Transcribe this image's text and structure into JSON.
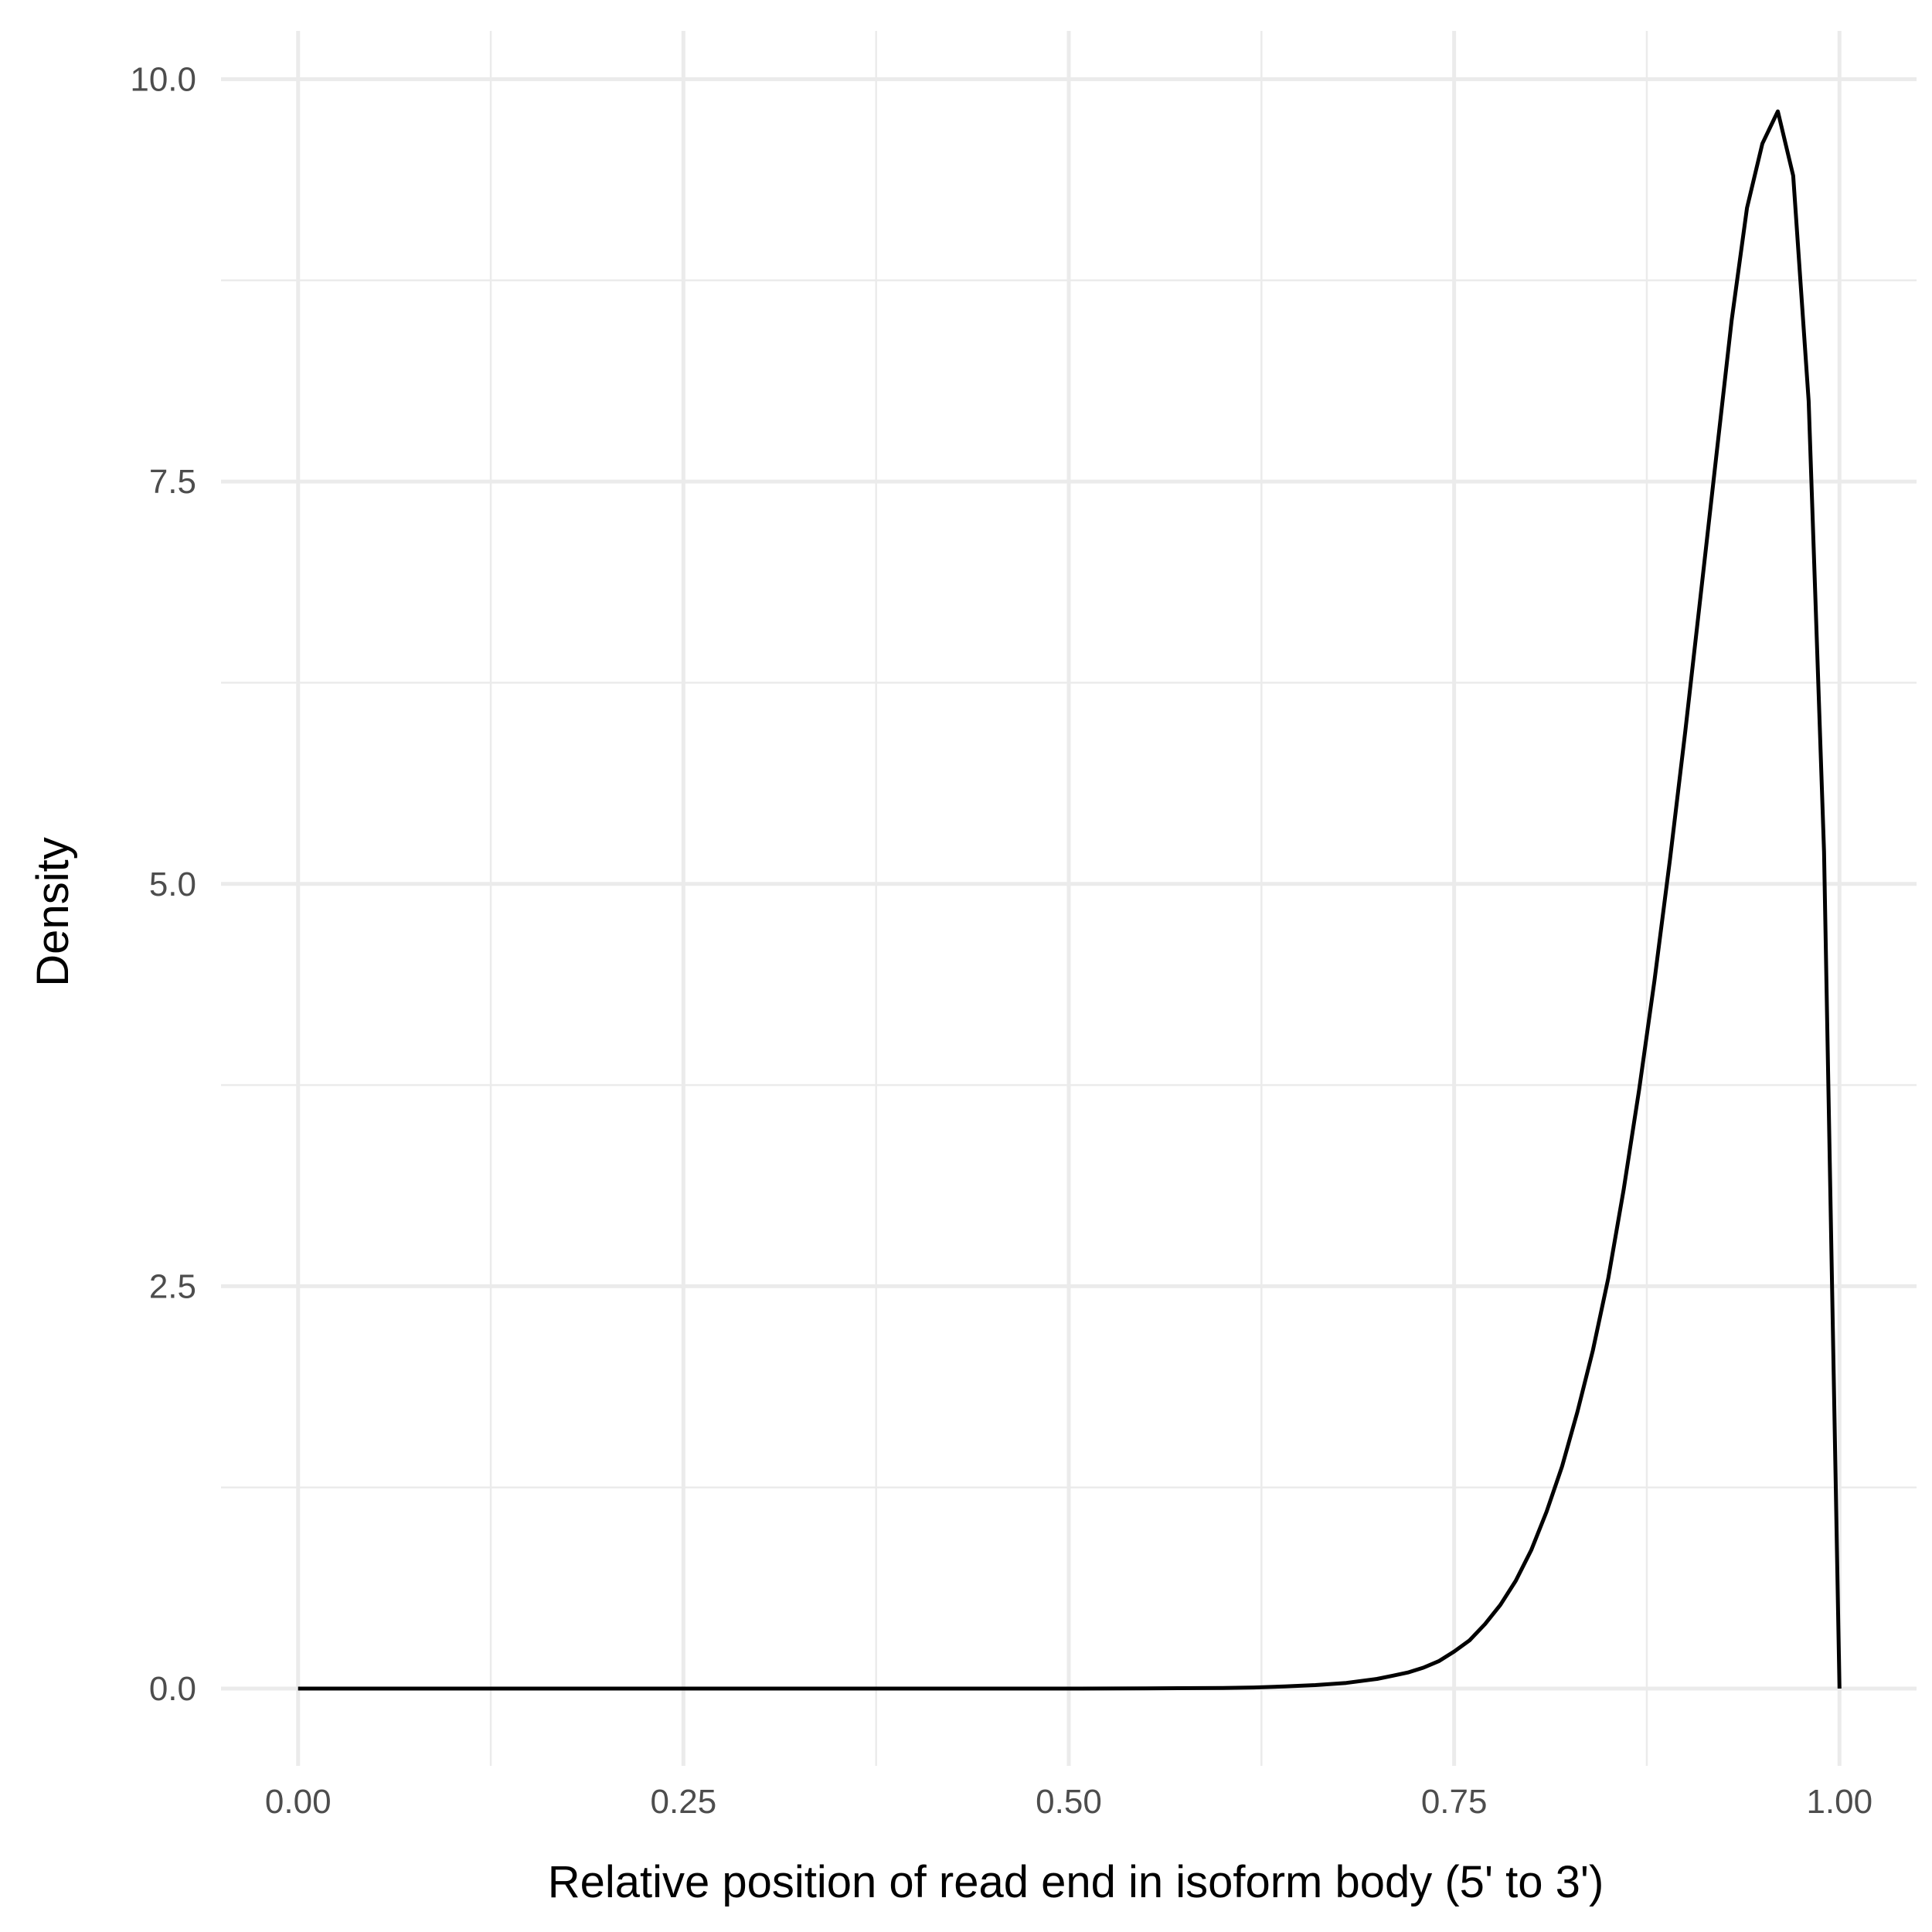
{
  "chart_data": {
    "type": "line",
    "xlabel": "Relative position of read end in isoform body (5' to 3')",
    "ylabel": "Density",
    "xlim": [
      -0.05,
      1.05
    ],
    "ylim": [
      -0.48,
      10.3
    ],
    "x_ticks": [
      0.0,
      0.25,
      0.5,
      0.75,
      1.0
    ],
    "x_tick_labels": [
      "0.00",
      "0.25",
      "0.50",
      "0.75",
      "1.00"
    ],
    "x_minor_ticks": [
      0.125,
      0.375,
      0.625,
      0.875
    ],
    "y_ticks": [
      0.0,
      2.5,
      5.0,
      7.5,
      10.0
    ],
    "y_tick_labels": [
      "0.0",
      "2.5",
      "5.0",
      "7.5",
      "10.0"
    ],
    "y_minor_ticks": [
      1.25,
      3.75,
      6.25,
      8.75
    ],
    "grid": true,
    "legend": "none",
    "line_color": "#000000",
    "grid_color": "#ebebeb",
    "series": [
      {
        "x": [
          0.0,
          0.1,
          0.2,
          0.3,
          0.4,
          0.5,
          0.55,
          0.6,
          0.62,
          0.64,
          0.66,
          0.68,
          0.7,
          0.71,
          0.72,
          0.73,
          0.74,
          0.75,
          0.76,
          0.77,
          0.78,
          0.79,
          0.8,
          0.81,
          0.82,
          0.83,
          0.84,
          0.85,
          0.86,
          0.87,
          0.88,
          0.89,
          0.9,
          0.91,
          0.92,
          0.93,
          0.94,
          0.95,
          0.96,
          0.97,
          0.98,
          0.99,
          1.0
        ],
        "y": [
          0.0,
          0.0,
          0.0,
          0.0,
          0.0,
          0.0,
          0.001,
          0.004,
          0.007,
          0.013,
          0.022,
          0.035,
          0.06,
          0.08,
          0.1,
          0.13,
          0.17,
          0.23,
          0.3,
          0.4,
          0.52,
          0.67,
          0.86,
          1.1,
          1.38,
          1.72,
          2.1,
          2.55,
          3.1,
          3.72,
          4.4,
          5.15,
          5.95,
          6.8,
          7.65,
          8.5,
          9.2,
          9.6,
          9.8,
          9.4,
          8.0,
          5.2,
          0.0
        ]
      }
    ]
  }
}
